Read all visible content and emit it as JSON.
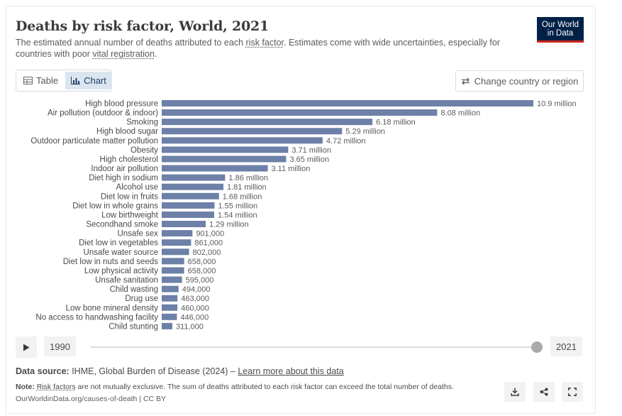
{
  "header": {
    "title": "Deaths by risk factor, World, 2021",
    "subtitle_pre": "The estimated annual number of deaths attributed to each ",
    "subtitle_link1": "risk factor",
    "subtitle_mid": ". Estimates come with wide uncertainties, especially for countries with poor ",
    "subtitle_link2": "vital registration",
    "subtitle_post": "."
  },
  "logo": {
    "line1": "Our World",
    "line2": "in Data",
    "bg": "#002147",
    "accent": "#ce261e"
  },
  "tabs": [
    {
      "label": "Table",
      "icon": "table-icon",
      "active": false
    },
    {
      "label": "Chart",
      "icon": "bar-chart-icon",
      "active": true
    }
  ],
  "country_button": {
    "label": "Change country or region",
    "icon": "swap-arrows-icon"
  },
  "chart_data": {
    "type": "bar",
    "orientation": "horizontal",
    "title": "Deaths by risk factor, World, 2021",
    "bar_color": "#6d80a8",
    "xlim": [
      0,
      10900000
    ],
    "categories": [
      "High blood pressure",
      "Air pollution (outdoor & indoor)",
      "Smoking",
      "High blood sugar",
      "Outdoor particulate matter pollution",
      "Obesity",
      "High cholesterol",
      "Indoor air pollution",
      "Diet high in sodium",
      "Alcohol use",
      "Diet low in fruits",
      "Diet low in whole grains",
      "Low birthweight",
      "Secondhand smoke",
      "Unsafe sex",
      "Diet low in vegetables",
      "Unsafe water source",
      "Diet low in nuts and seeds",
      "Low physical activity",
      "Unsafe sanitation",
      "Child wasting",
      "Drug use",
      "Low bone mineral density",
      "No access to handwashing facility",
      "Child stunting"
    ],
    "values": [
      10900000,
      8080000,
      6180000,
      5290000,
      4720000,
      3710000,
      3650000,
      3110000,
      1860000,
      1810000,
      1680000,
      1550000,
      1540000,
      1290000,
      901000,
      861000,
      802000,
      658000,
      658000,
      595000,
      494000,
      463000,
      460000,
      446000,
      311000
    ],
    "value_labels": [
      "10.9 million",
      "8.08 million",
      "6.18 million",
      "5.29 million",
      "4.72 million",
      "3.71 million",
      "3.65 million",
      "3.11 million",
      "1.86 million",
      "1.81 million",
      "1.68 million",
      "1.55 million",
      "1.54 million",
      "1.29 million",
      "901,000",
      "861,000",
      "802,000",
      "658,000",
      "658,000",
      "595,000",
      "494,000",
      "463,000",
      "460,000",
      "446,000",
      "311,000"
    ]
  },
  "timeline": {
    "start_year": "1990",
    "end_year": "2021",
    "play_icon": "play-icon"
  },
  "footer": {
    "source_label": "Data source:",
    "source_text": " IHME, Global Burden of Disease (2024) – ",
    "source_link": "Learn more about this data",
    "note_label": "Note:",
    "note_link": "Risk factors",
    "note_text": " are not mutually exclusive. The sum of deaths attributed to each risk factor can exceed the total number of deaths.",
    "url": "OurWorldinData.org/causes-of-death | CC BY"
  },
  "actions": [
    {
      "name": "download-button",
      "icon": "download-icon"
    },
    {
      "name": "share-button",
      "icon": "share-icon"
    },
    {
      "name": "fullscreen-button",
      "icon": "fullscreen-icon"
    }
  ]
}
